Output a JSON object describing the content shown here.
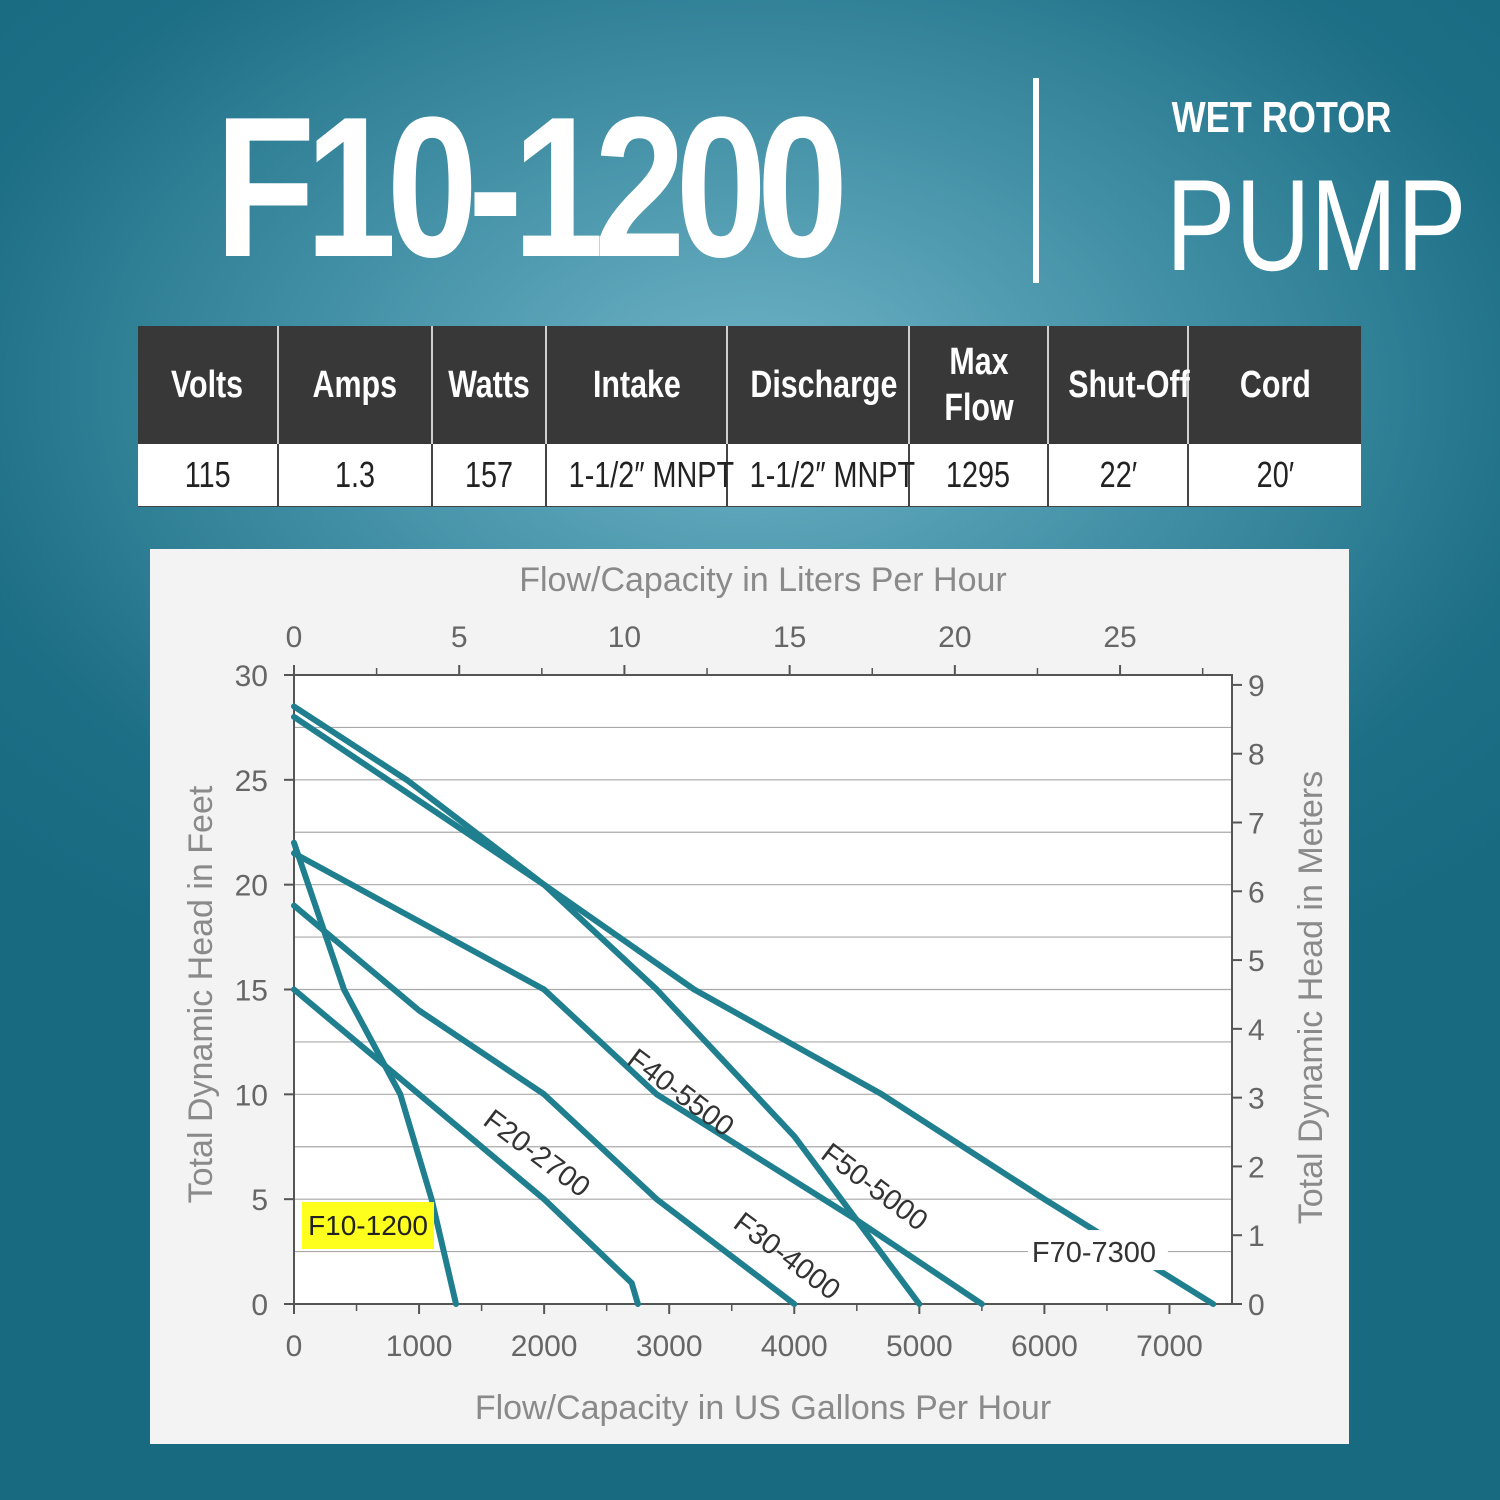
{
  "header": {
    "model": "F10-1200",
    "subtitle_small": "WET ROTOR",
    "subtitle_big": "PUMP"
  },
  "specs": {
    "headers": [
      "Volts",
      "Amps",
      "Watts",
      "Intake",
      "Discharge",
      "Max Flow",
      "Shut-Off",
      "Cord"
    ],
    "values": [
      "115",
      "1.3",
      "157",
      "1-1/2″ MNPT",
      "1-1/2″ MNPT",
      "1295",
      "22′",
      "20′"
    ]
  },
  "colors": {
    "curve": "#1f7f8e",
    "highlight": "#ffff1e",
    "header_bg": "#383838",
    "axis_text": "#8a8a8a"
  },
  "chart_data": {
    "type": "line",
    "title": "",
    "xlabel": "Flow/Capacity in US Gallons Per Hour",
    "x2label": "Flow/Capacity in Liters Per Hour",
    "ylabel": "Total Dynamic Head in Feet",
    "y2label": "Total Dynamic Head in Meters",
    "xlim": [
      0,
      7500
    ],
    "ylim": [
      0,
      30
    ],
    "x_ticks": [
      "0",
      "1000",
      "2000",
      "3000",
      "4000",
      "5000",
      "6000",
      "7000"
    ],
    "x2_ticks": [
      "0",
      "5",
      "10",
      "15",
      "20",
      "25"
    ],
    "y_ticks": [
      "0",
      "5",
      "10",
      "15",
      "20",
      "25",
      "30"
    ],
    "y2_ticks": [
      "0",
      "1",
      "2",
      "3",
      "4",
      "5",
      "6",
      "7",
      "8",
      "9"
    ],
    "grid": true,
    "series": [
      {
        "name": "F10-1200",
        "highlight": true,
        "points": [
          [
            0,
            22
          ],
          [
            400,
            15
          ],
          [
            850,
            10
          ],
          [
            1100,
            5
          ],
          [
            1295,
            0
          ]
        ]
      },
      {
        "name": "F20-2700",
        "points": [
          [
            0,
            15
          ],
          [
            1000,
            10
          ],
          [
            2000,
            5
          ],
          [
            2700,
            1
          ],
          [
            2750,
            0
          ]
        ]
      },
      {
        "name": "F30-4000",
        "points": [
          [
            0,
            19
          ],
          [
            1000,
            14
          ],
          [
            2000,
            10
          ],
          [
            2900,
            5
          ],
          [
            4000,
            0
          ]
        ]
      },
      {
        "name": "F40-5500",
        "points": [
          [
            0,
            21.5
          ],
          [
            2000,
            15
          ],
          [
            2900,
            10
          ],
          [
            4500,
            4
          ],
          [
            5500,
            0
          ]
        ]
      },
      {
        "name": "F50-5000",
        "points": [
          [
            0,
            28
          ],
          [
            2000,
            20
          ],
          [
            2900,
            15
          ],
          [
            4000,
            8
          ],
          [
            5000,
            0
          ]
        ]
      },
      {
        "name": "F70-7300",
        "points": [
          [
            0,
            28.5
          ],
          [
            900,
            25
          ],
          [
            2000,
            20
          ],
          [
            3200,
            15
          ],
          [
            4700,
            10
          ],
          [
            6000,
            5
          ],
          [
            7350,
            0
          ]
        ]
      }
    ]
  }
}
